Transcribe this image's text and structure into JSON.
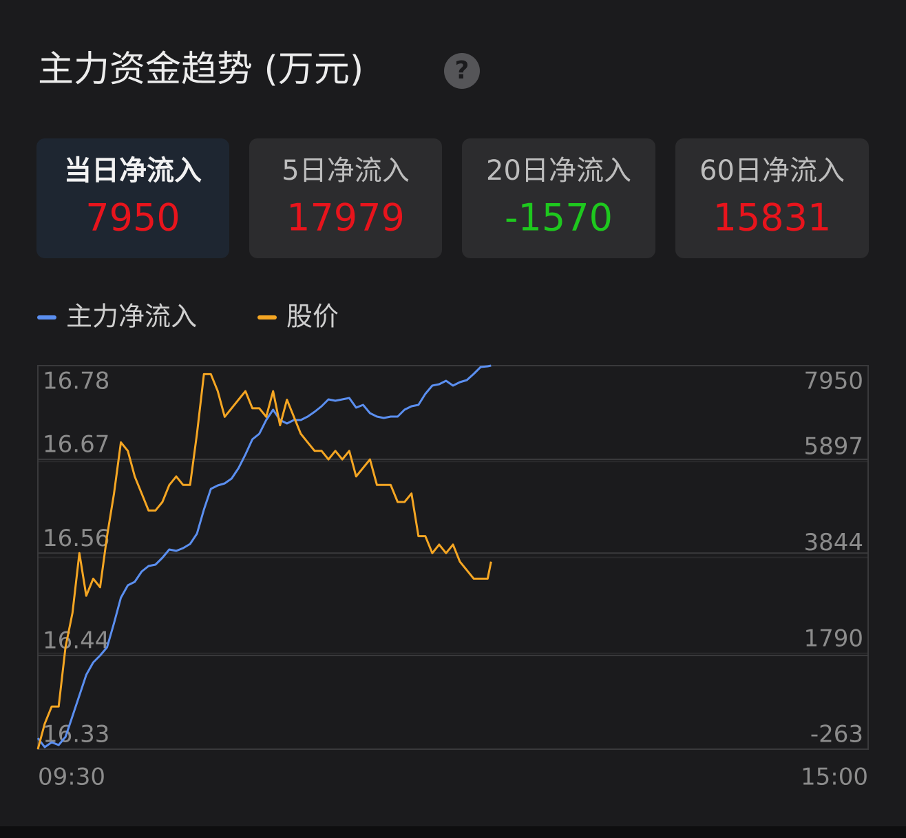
{
  "header": {
    "title": "主力资金趋势 (万元)",
    "help": "?"
  },
  "tabs": [
    {
      "label": "当日净流入",
      "value": 7950,
      "color": "#e8141c",
      "selected": true
    },
    {
      "label": "5日净流入",
      "value": 17979,
      "color": "#e8141c",
      "selected": false
    },
    {
      "label": "20日净流入",
      "value": -1570,
      "color": "#1ec81e",
      "selected": false
    },
    {
      "label": "60日净流入",
      "value": 15831,
      "color": "#e8141c",
      "selected": false
    }
  ],
  "chart_data": {
    "type": "line",
    "x": [
      0,
      2,
      4,
      6,
      8,
      10,
      12,
      14,
      16,
      18,
      20,
      22,
      24,
      26,
      28,
      30,
      32,
      34,
      36,
      38,
      40,
      42,
      44,
      46,
      48,
      50,
      52,
      54,
      56,
      58,
      60,
      62,
      64,
      66,
      68,
      70,
      72,
      74,
      76,
      78,
      80,
      82,
      84,
      86,
      88,
      90,
      92,
      94,
      96,
      98,
      100,
      102,
      104,
      106,
      108,
      110,
      112,
      114,
      116,
      118,
      120,
      122,
      124,
      126,
      128,
      130,
      131
    ],
    "xlim": [
      0,
      240
    ],
    "xticks": [
      {
        "value": 0,
        "label": "09:30"
      },
      {
        "value": 240,
        "label": "15:00"
      }
    ],
    "ylim": [
      16.33,
      16.78
    ],
    "yticks": [
      16.78,
      16.67,
      16.56,
      16.44,
      16.33
    ],
    "y2lim": [
      -263,
      7950
    ],
    "y2ticks": [
      7950,
      5897,
      3844,
      1790,
      -263
    ],
    "grid": true,
    "legend": "top-left",
    "series": [
      {
        "name": "主力净流入",
        "color": "#5b8ff0",
        "axis": "y2",
        "values": [
          -27,
          -219,
          -116,
          -175,
          2,
          445,
          887,
          1329,
          1595,
          1742,
          1919,
          2435,
          2981,
          3246,
          3320,
          3541,
          3659,
          3689,
          3836,
          4013,
          3984,
          4043,
          4131,
          4352,
          4869,
          5311,
          5384,
          5429,
          5532,
          5753,
          6048,
          6372,
          6490,
          6785,
          7006,
          6785,
          6711,
          6785,
          6785,
          6859,
          6962,
          7080,
          7228,
          7198,
          7228,
          7257,
          7051,
          7110,
          6933,
          6859,
          6830,
          6859,
          6859,
          7006,
          7080,
          7110,
          7345,
          7522,
          7552,
          7626,
          7522,
          7596,
          7640,
          7773,
          7920,
          7935,
          7950
        ]
      },
      {
        "name": "股价",
        "color": "#f5a623",
        "axis": "y",
        "values": [
          16.33,
          16.36,
          16.38,
          16.38,
          16.45,
          16.49,
          16.56,
          16.51,
          16.53,
          16.52,
          16.58,
          16.63,
          16.69,
          16.68,
          16.65,
          16.63,
          16.61,
          16.61,
          16.62,
          16.64,
          16.65,
          16.64,
          16.64,
          16.7,
          16.77,
          16.77,
          16.75,
          16.72,
          16.73,
          16.74,
          16.75,
          16.73,
          16.73,
          16.72,
          16.75,
          16.71,
          16.74,
          16.72,
          16.7,
          16.69,
          16.68,
          16.68,
          16.67,
          16.68,
          16.67,
          16.68,
          16.65,
          16.66,
          16.67,
          16.64,
          16.64,
          16.64,
          16.62,
          16.62,
          16.63,
          16.58,
          16.58,
          16.56,
          16.57,
          16.56,
          16.57,
          16.55,
          16.54,
          16.53,
          16.53,
          16.53,
          16.55
        ]
      }
    ]
  }
}
